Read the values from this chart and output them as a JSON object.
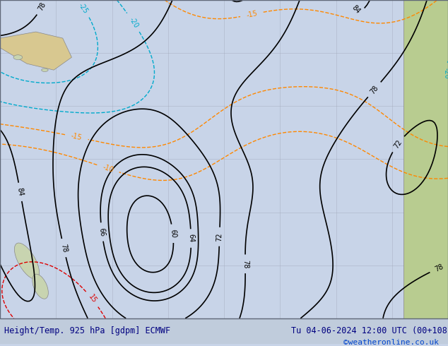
{
  "title_left": "Height/Temp. 925 hPa [gdpm] ECMWF",
  "title_right": "Tu 04-06-2024 12:00 UTC (00+108)",
  "copyright": "©weatheronline.co.uk",
  "background_color": "#d0d8e8",
  "map_background": "#c8d4e8",
  "land_color": "#e8e8e0",
  "text_color": "#000080",
  "bottom_bar_color": "#c8d4e8",
  "figsize": [
    6.34,
    4.9
  ],
  "dpi": 100,
  "title_fontsize": 8.5,
  "copyright_fontsize": 8,
  "bottom_text_color": "#000080"
}
